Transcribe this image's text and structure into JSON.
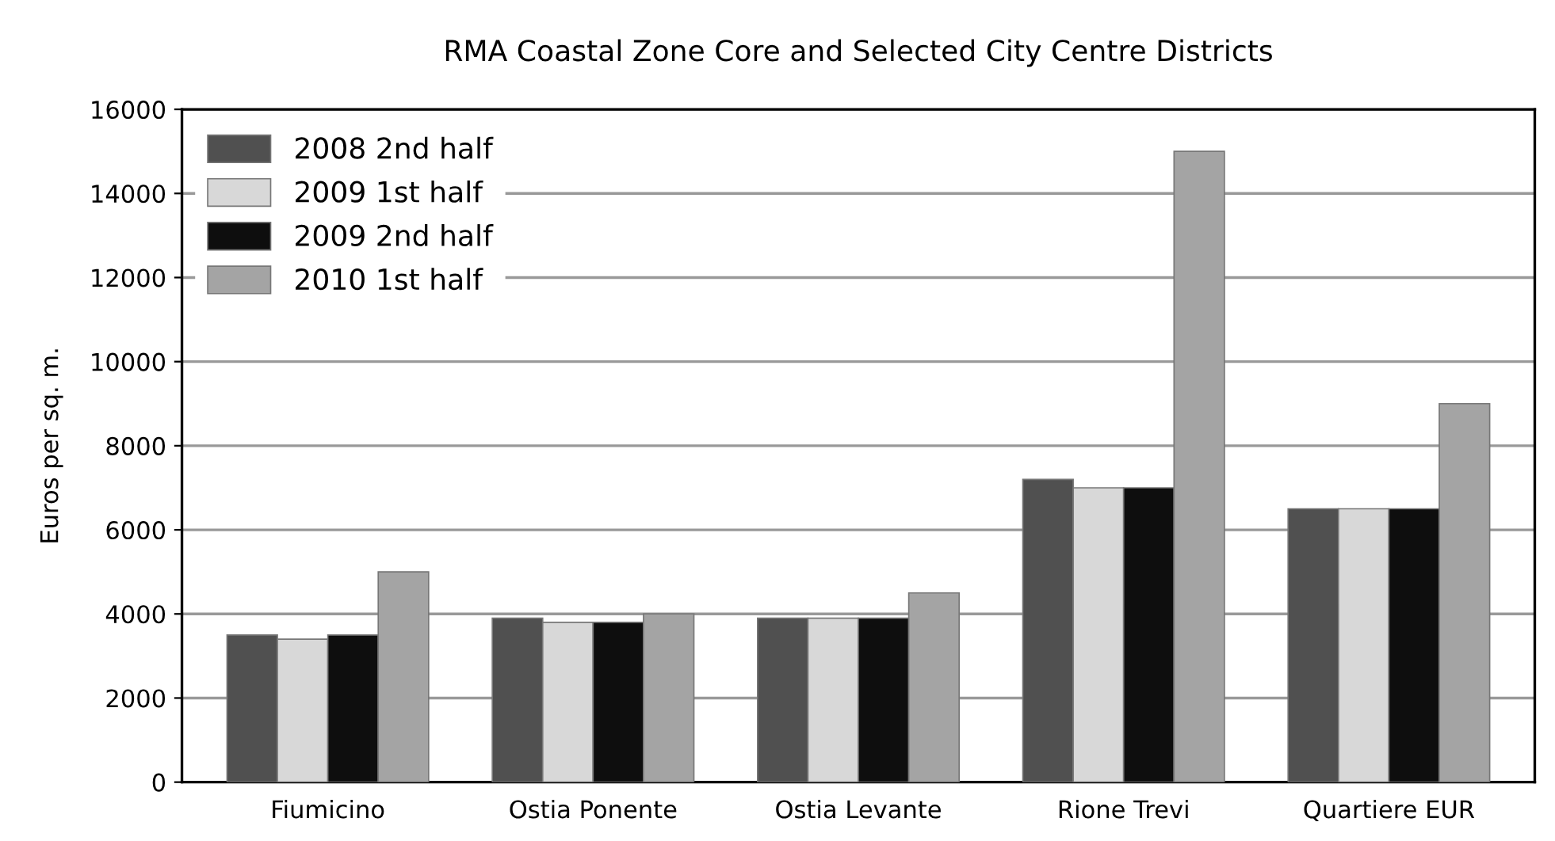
{
  "chart_data": {
    "type": "bar",
    "title": "RMA Coastal Zone Core and Selected City Centre Districts",
    "ylabel": "Euros per sq. m.",
    "categories": [
      "Fiumicino",
      "Ostia Ponente",
      "Ostia Levante",
      "Rione Trevi",
      "Quartiere EUR"
    ],
    "series": [
      {
        "name": "2008 2nd half",
        "color": "#505050",
        "values": [
          3500,
          3900,
          3900,
          7200,
          6500
        ]
      },
      {
        "name": "2009 1st half",
        "color": "#d8d8d8",
        "values": [
          3400,
          3800,
          3900,
          7000,
          6500
        ]
      },
      {
        "name": "2009 2nd half",
        "color": "#0e0e0e",
        "values": [
          3500,
          3800,
          3900,
          7000,
          6500
        ]
      },
      {
        "name": "2010 1st half",
        "color": "#a4a4a4",
        "values": [
          5000,
          4000,
          4500,
          15000,
          9000
        ]
      }
    ],
    "ylim": [
      0,
      16000
    ],
    "yticks": [
      0,
      2000,
      4000,
      6000,
      8000,
      10000,
      12000,
      14000,
      16000
    ],
    "grid": "y",
    "legend": "top left"
  }
}
